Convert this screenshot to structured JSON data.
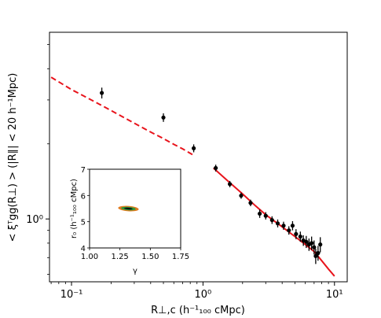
{
  "chart_data": [
    {
      "type": "scatter",
      "xscale": "log",
      "yscale": "log",
      "xlim": [
        0.068,
        12.5
      ],
      "ylim": [
        0.56,
        5.6
      ],
      "xlabel": "R⊥,c (h⁻¹₁₀₀ cMpc)",
      "ylabel": "< ξᵀgg(R⊥) > (|R∥| < 20 h⁻¹Mpc)",
      "x_tick_values": [
        0.1,
        1,
        10
      ],
      "x_tick_labels": [
        "10⁻¹",
        "10⁰",
        "10¹"
      ],
      "y_tick_values": [
        1
      ],
      "y_tick_labels": [
        "10⁰"
      ],
      "grid": false,
      "series": [
        {
          "style": "points-with-errorbars",
          "color": "#000000",
          "x": [
            0.17,
            0.5,
            0.85,
            1.25,
            1.6,
            1.95,
            2.3,
            2.7,
            3.0,
            3.35,
            3.7,
            4.1,
            4.5,
            4.8,
            5.1,
            5.5,
            5.8,
            6.1,
            6.4,
            6.7,
            7.0,
            7.2,
            7.5,
            7.8
          ],
          "y": [
            3.2,
            2.55,
            1.92,
            1.6,
            1.38,
            1.24,
            1.16,
            1.05,
            1.03,
            0.99,
            0.96,
            0.94,
            0.9,
            0.94,
            0.87,
            0.85,
            0.82,
            0.81,
            0.79,
            0.8,
            0.77,
            0.71,
            0.73,
            0.79
          ],
          "yerr": [
            0.16,
            0.1,
            0.07,
            0.05,
            0.04,
            0.035,
            0.035,
            0.04,
            0.035,
            0.035,
            0.035,
            0.035,
            0.035,
            0.04,
            0.04,
            0.04,
            0.04,
            0.045,
            0.045,
            0.05,
            0.05,
            0.05,
            0.05,
            0.055
          ]
        },
        {
          "style": "line-dashed",
          "color": "#e8141c",
          "x": [
            0.07,
            0.1,
            0.15,
            0.2,
            0.3,
            0.4,
            0.5,
            0.6,
            0.7,
            0.85
          ],
          "y": [
            3.7,
            3.3,
            2.95,
            2.72,
            2.42,
            2.23,
            2.1,
            1.99,
            1.91,
            1.8
          ]
        },
        {
          "style": "line-solid",
          "color": "#e8141c",
          "x": [
            1.2,
            1.5,
            2.0,
            2.5,
            3.0,
            4.0,
            5.0,
            6.0,
            7.0,
            8.0,
            9.0,
            10.0
          ],
          "y": [
            1.6,
            1.44,
            1.26,
            1.13,
            1.04,
            0.93,
            0.85,
            0.79,
            0.74,
            0.68,
            0.63,
            0.59
          ]
        }
      ]
    },
    {
      "type": "contour",
      "xlim": [
        1.0,
        1.75
      ],
      "ylim": [
        4,
        7
      ],
      "xlabel": "γ",
      "ylabel": "r₀ (h⁻¹₁₀₀ cMpc)",
      "x_tick_values": [
        1.0,
        1.25,
        1.5,
        1.75
      ],
      "x_tick_labels": [
        "1.00",
        "1.25",
        "1.50",
        "1.75"
      ],
      "y_tick_values": [
        4,
        5,
        6,
        7
      ],
      "y_tick_labels": [
        "4",
        "5",
        "6",
        "7"
      ],
      "contours": [
        {
          "center": [
            1.32,
            5.5
          ],
          "x_halfwidth": 0.085,
          "y_halfwidth": 0.1,
          "color": "#e07a1f"
        },
        {
          "center": [
            1.32,
            5.5
          ],
          "x_halfwidth": 0.06,
          "y_halfwidth": 0.065,
          "color": "#2a9a3a"
        },
        {
          "center": [
            1.32,
            5.5
          ],
          "x_halfwidth": 0.035,
          "y_halfwidth": 0.035,
          "color": "#111111"
        }
      ]
    }
  ]
}
